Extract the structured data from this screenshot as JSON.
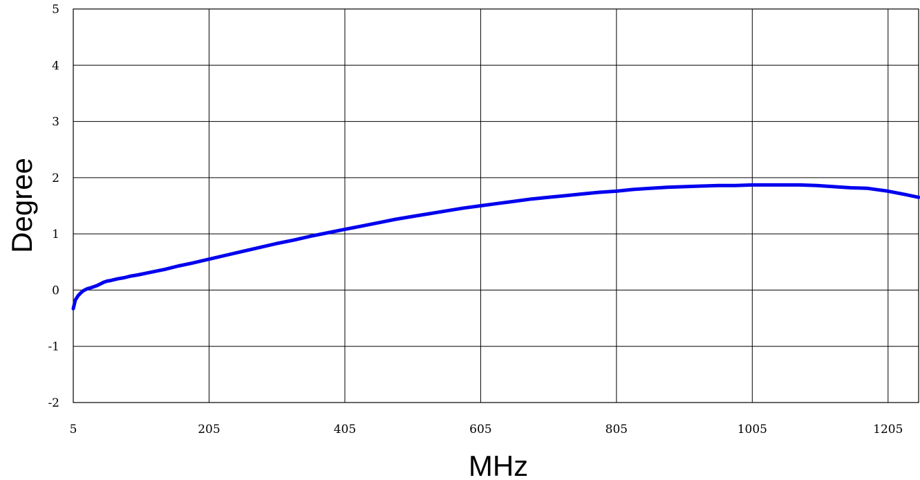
{
  "chart_data": {
    "type": "line",
    "title": "",
    "xlabel": "MHz",
    "ylabel": "Degree",
    "xlim": [
      5,
      1250
    ],
    "ylim": [
      -2,
      5
    ],
    "xticks": [
      5,
      205,
      405,
      605,
      805,
      1005,
      1205
    ],
    "yticks": [
      -2,
      -1,
      0,
      1,
      2,
      3,
      4,
      5
    ],
    "grid": true,
    "legend": "none",
    "series": [
      {
        "color": "#0000ee",
        "x": [
          5,
          8,
          12,
          16,
          20,
          25,
          30,
          35,
          40,
          45,
          50,
          55,
          60,
          70,
          80,
          90,
          100,
          120,
          140,
          160,
          180,
          205,
          230,
          255,
          280,
          305,
          330,
          355,
          380,
          405,
          430,
          455,
          480,
          505,
          530,
          555,
          580,
          605,
          630,
          655,
          680,
          705,
          730,
          755,
          780,
          805,
          830,
          855,
          880,
          905,
          930,
          955,
          980,
          1005,
          1030,
          1055,
          1075,
          1100,
          1125,
          1150,
          1175,
          1205,
          1230,
          1250
        ],
        "y": [
          -0.33,
          -0.18,
          -0.1,
          -0.05,
          -0.01,
          0.02,
          0.04,
          0.06,
          0.08,
          0.11,
          0.14,
          0.16,
          0.17,
          0.2,
          0.22,
          0.25,
          0.27,
          0.32,
          0.37,
          0.43,
          0.48,
          0.55,
          0.62,
          0.69,
          0.76,
          0.83,
          0.89,
          0.96,
          1.02,
          1.08,
          1.14,
          1.2,
          1.26,
          1.31,
          1.36,
          1.41,
          1.46,
          1.5,
          1.54,
          1.58,
          1.62,
          1.65,
          1.68,
          1.71,
          1.74,
          1.76,
          1.79,
          1.81,
          1.83,
          1.84,
          1.85,
          1.86,
          1.86,
          1.87,
          1.87,
          1.87,
          1.87,
          1.86,
          1.84,
          1.82,
          1.81,
          1.76,
          1.7,
          1.65
        ]
      }
    ]
  }
}
